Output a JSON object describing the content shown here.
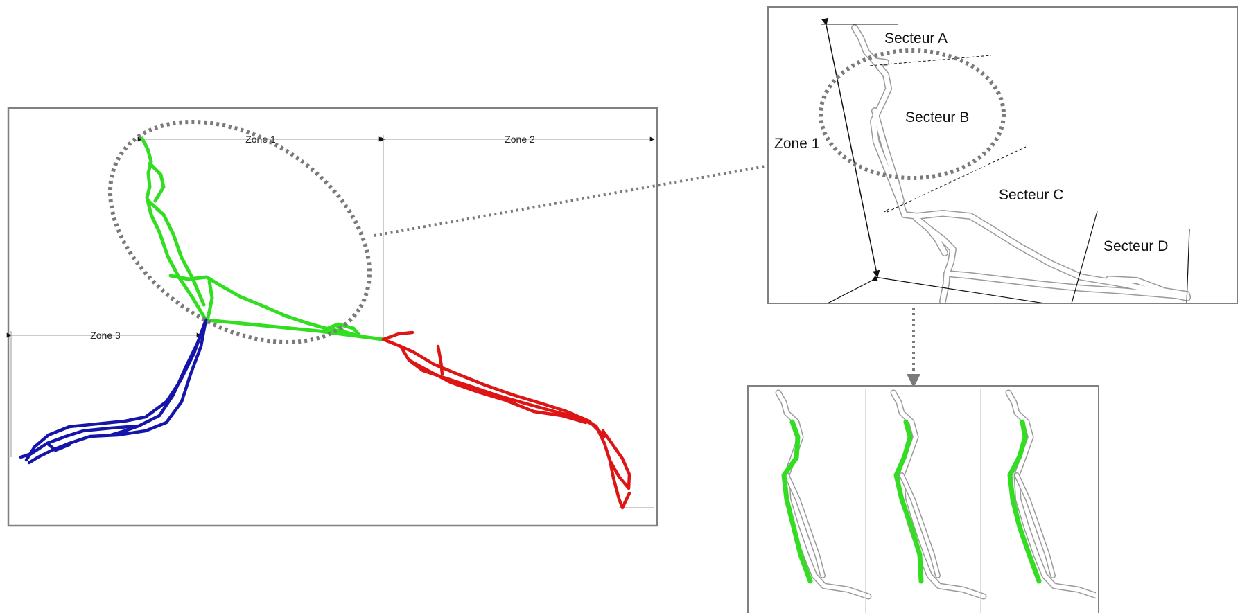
{
  "main_map": {
    "zones": [
      "Zone 1",
      "Zone 2",
      "Zone 3"
    ]
  },
  "detail_map": {
    "zone_label": "Zone 1",
    "sectors": [
      "Secteur A",
      "Secteur B",
      "Secteur C",
      "Secteur D"
    ]
  },
  "colors": {
    "zone1_network": "#33dd22",
    "zone2_network": "#dd1515",
    "zone3_network": "#1515aa",
    "frame": "#808080",
    "callout": "#7a7a7a",
    "channel_outline": "#9a9a9a"
  },
  "variants_panel": {
    "count": 3
  }
}
